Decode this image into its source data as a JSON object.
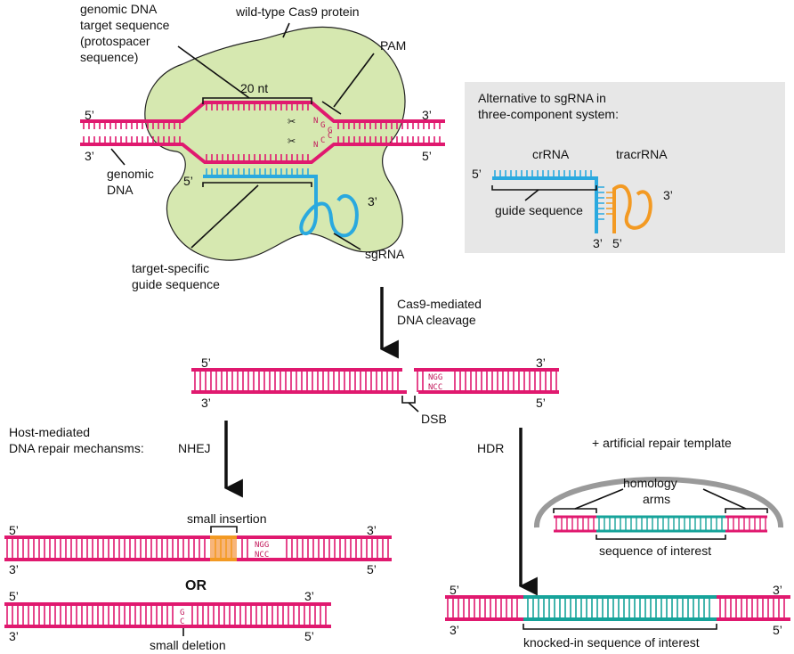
{
  "colors": {
    "dna": "#e0196f",
    "guide": "#2aa9df",
    "tracr": "#f39a23",
    "cas9": "#d6e8b0",
    "cas9_stroke": "#222222",
    "insert": "#f7b57a",
    "teal": "#16a39a",
    "panel": "#e7e7e7",
    "template_arc": "#9a9a9a",
    "ink": "#111111"
  },
  "labels": {
    "genomic_target": [
      "genomic DNA",
      "target sequence",
      "(protospacer",
      "sequence)"
    ],
    "cas9_protein": "wild-type Cas9 protein",
    "pam": "PAM",
    "nt20": "20 nt",
    "genomic_dna": [
      "genomic",
      "DNA"
    ],
    "sgrna": "sgRNA",
    "target_guide": [
      "target-specific",
      "guide sequence"
    ],
    "alt_title": [
      "Alternative to sgRNA in",
      "three-component system:"
    ],
    "crrna": "crRNA",
    "tracrrna": "tracrRNA",
    "guide_seq": "guide sequence",
    "cleavage": [
      "Cas9-mediated",
      "DNA cleavage"
    ],
    "dsb": "DSB",
    "host_repair": [
      "Host-mediated",
      "DNA repair mechansms:"
    ],
    "nhej": "NHEJ",
    "hdr": "HDR",
    "repair_template": "+ artificial repair template",
    "homology_arms": [
      "homology",
      "arms"
    ],
    "seq_interest": "sequence of interest",
    "small_insertion": "small insertion",
    "or_text": "OR",
    "small_deletion": "small deletion",
    "knocked_in": "knocked-in sequence of interest",
    "five_prime": "5’",
    "three_prime": "3’"
  },
  "seq": {
    "ngg": "NGG",
    "ncc": "NCC",
    "n": "N",
    "g1": "G",
    "g2": "G",
    "c1": "N",
    "c2": "C",
    "c3": "C",
    "del_g": "G",
    "del_c": "C"
  }
}
